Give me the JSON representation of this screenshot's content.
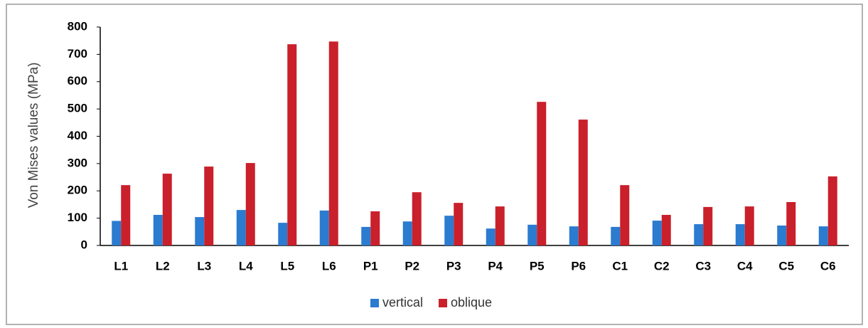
{
  "chart_data": {
    "type": "bar",
    "ylabel": "Von Mises values (MPa)",
    "categories": [
      "L1",
      "L2",
      "L3",
      "L4",
      "L5",
      "L6",
      "P1",
      "P2",
      "P3",
      "P4",
      "P5",
      "P6",
      "C1",
      "C2",
      "C3",
      "C4",
      "C5",
      "C6"
    ],
    "series": [
      {
        "name": "vertical",
        "color": "#2b7bd0",
        "values": [
          90,
          112,
          104,
          130,
          83,
          128,
          68,
          88,
          109,
          62,
          76,
          70,
          68,
          91,
          78,
          78,
          73,
          70
        ]
      },
      {
        "name": "oblique",
        "color": "#c9202b",
        "values": [
          221,
          263,
          289,
          302,
          737,
          747,
          125,
          195,
          156,
          143,
          526,
          461,
          221,
          112,
          141,
          143,
          159,
          253
        ]
      }
    ],
    "ylim": [
      0,
      800
    ],
    "yticks": [
      0,
      100,
      200,
      300,
      400,
      500,
      600,
      700,
      800
    ],
    "grid": false,
    "legend": "bottom"
  }
}
